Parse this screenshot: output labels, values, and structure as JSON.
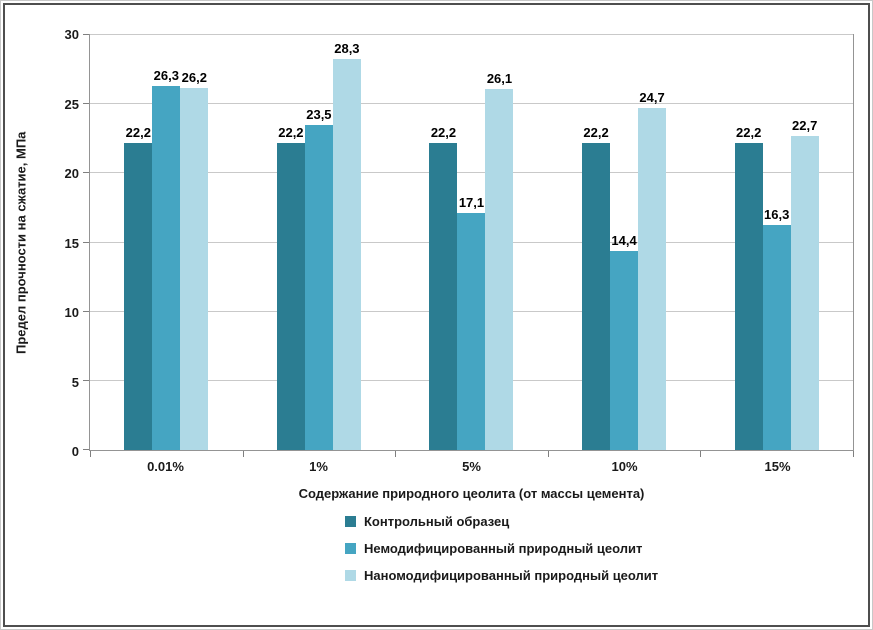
{
  "chart_data": {
    "type": "bar",
    "title": "",
    "categories": [
      "0.01%",
      "1%",
      "5%",
      "10%",
      "15%"
    ],
    "series": [
      {
        "name": "Контрольный образец",
        "color": "#2B7D92",
        "values": [
          22.2,
          22.2,
          22.2,
          22.2,
          22.2
        ],
        "labels": [
          "22,2",
          "22,2",
          "22,2",
          "22,2",
          "22,2"
        ]
      },
      {
        "name": "Немодифицированный природный цеолит",
        "color": "#45A5C2",
        "values": [
          26.3,
          23.5,
          17.1,
          14.4,
          16.3
        ],
        "labels": [
          "26,3",
          "23,5",
          "17,1",
          "14,4",
          "16,3"
        ]
      },
      {
        "name": "Наномодифицированный природный цеолит",
        "color": "#AFD9E6",
        "values": [
          26.2,
          28.3,
          26.1,
          24.7,
          22.7
        ],
        "labels": [
          "26,2",
          "28,3",
          "26,1",
          "24,7",
          "22,7"
        ]
      }
    ],
    "xlabel": "Содержание природного цеолита (от массы цемента)",
    "ylabel": "Предел прочности на сжатие, МПа",
    "ylim": [
      0,
      30
    ],
    "yticks": [
      0,
      5,
      10,
      15,
      20,
      25,
      30
    ],
    "grid": true,
    "legend_position": "bottom"
  },
  "colors": {
    "gridline": "#c9c9c9",
    "axis": "#949494",
    "frame": "#4e4e4e",
    "text": "#1a1a1a"
  }
}
